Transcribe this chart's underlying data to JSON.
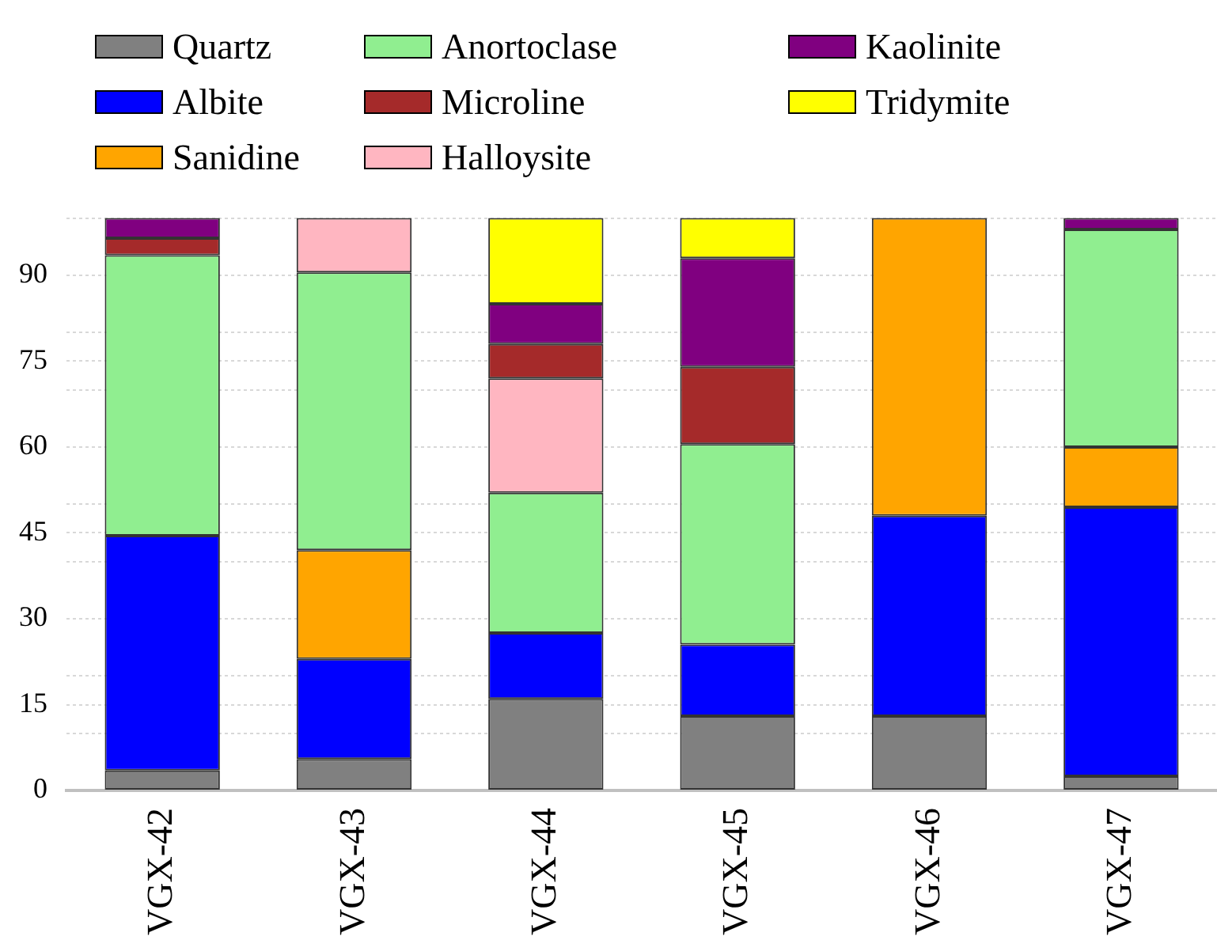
{
  "chart_data": {
    "type": "bar",
    "stacked": true,
    "categories": [
      "VGX-42",
      "VGX-43",
      "VGX-44",
      "VGX-45",
      "VGX-46",
      "VGX-47"
    ],
    "series": [
      {
        "name": "Quartz",
        "color": "#808080",
        "values": [
          3.5,
          5.5,
          16,
          13,
          13,
          2.5
        ]
      },
      {
        "name": "Albite",
        "color": "#0000ff",
        "values": [
          41,
          17.5,
          11.5,
          12.5,
          35,
          47
        ]
      },
      {
        "name": "Sanidine",
        "color": "#ffa500",
        "values": [
          null,
          19,
          null,
          null,
          52,
          10.5
        ]
      },
      {
        "name": "Anortoclase",
        "color": "#90ee90",
        "values": [
          49,
          48.5,
          24.5,
          35,
          null,
          38
        ]
      },
      {
        "name": "Halloysite",
        "color": "#ffb6c1",
        "values": [
          null,
          9.5,
          20,
          null,
          null,
          null
        ]
      },
      {
        "name": "Microline",
        "color": "#a52a2a",
        "values": [
          3,
          null,
          6,
          13.5,
          null,
          null
        ]
      },
      {
        "name": "Kaolinite",
        "color": "#800080",
        "values": [
          3.5,
          null,
          7,
          19,
          null,
          2
        ]
      },
      {
        "name": "Tridymite",
        "color": "#ffff00",
        "values": [
          null,
          null,
          15,
          7,
          null,
          null
        ]
      }
    ],
    "ylim": [
      0,
      100
    ],
    "yticks": [
      0,
      {
        "value": 10,
        "label": null
      },
      15,
      {
        "value": 20,
        "label": null
      },
      30,
      {
        "value": 40,
        "label": null
      },
      45,
      {
        "value": 50,
        "label": null
      },
      60,
      {
        "value": 70,
        "label": null
      },
      75,
      {
        "value": 80,
        "label": null
      },
      90,
      {
        "value": 100,
        "label": null
      }
    ],
    "grid": "y",
    "legend": "top"
  }
}
